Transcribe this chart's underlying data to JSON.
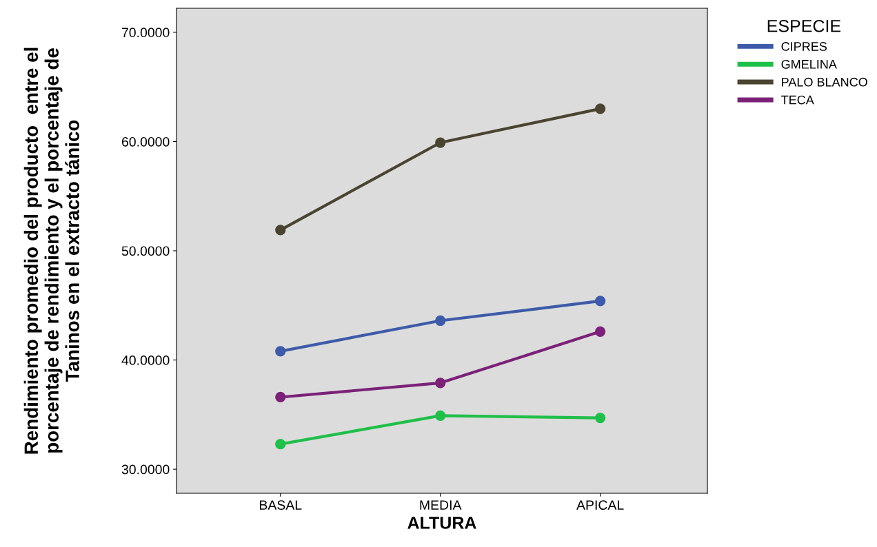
{
  "chart_data": {
    "type": "line",
    "xlabel": "ALTURA",
    "ylabel": "Rendimiento promedio del producto  entre el\nporcentaje de rendimiento y el porcentaje de\nTaninos en el extracto tánico",
    "categories": [
      "BASAL",
      "MEDIA",
      "APICAL"
    ],
    "series": [
      {
        "name": "CIPRES",
        "color": "#3e5ba9",
        "values": [
          40.8,
          43.6,
          45.4
        ]
      },
      {
        "name": "GMELINA",
        "color": "#1fbf4a",
        "values": [
          32.3,
          34.9,
          34.7
        ]
      },
      {
        "name": "PALO BLANCO",
        "color": "#4a4431",
        "values": [
          51.9,
          59.9,
          63.0
        ]
      },
      {
        "name": "TECA",
        "color": "#7b2278",
        "values": [
          36.6,
          37.9,
          42.6
        ]
      }
    ],
    "legend_title": "ESPECIE",
    "legend": "top right",
    "marker": "circle",
    "line_style": "solid",
    "grid": false,
    "ylim": [
      27.8,
      72.2
    ],
    "yticks": [
      {
        "value": 30,
        "label": "30.0000"
      },
      {
        "value": 40,
        "label": "40.0000"
      },
      {
        "value": 50,
        "label": "50.0000"
      },
      {
        "value": 60,
        "label": "60.0000"
      },
      {
        "value": 70,
        "label": "70.0000"
      }
    ]
  }
}
